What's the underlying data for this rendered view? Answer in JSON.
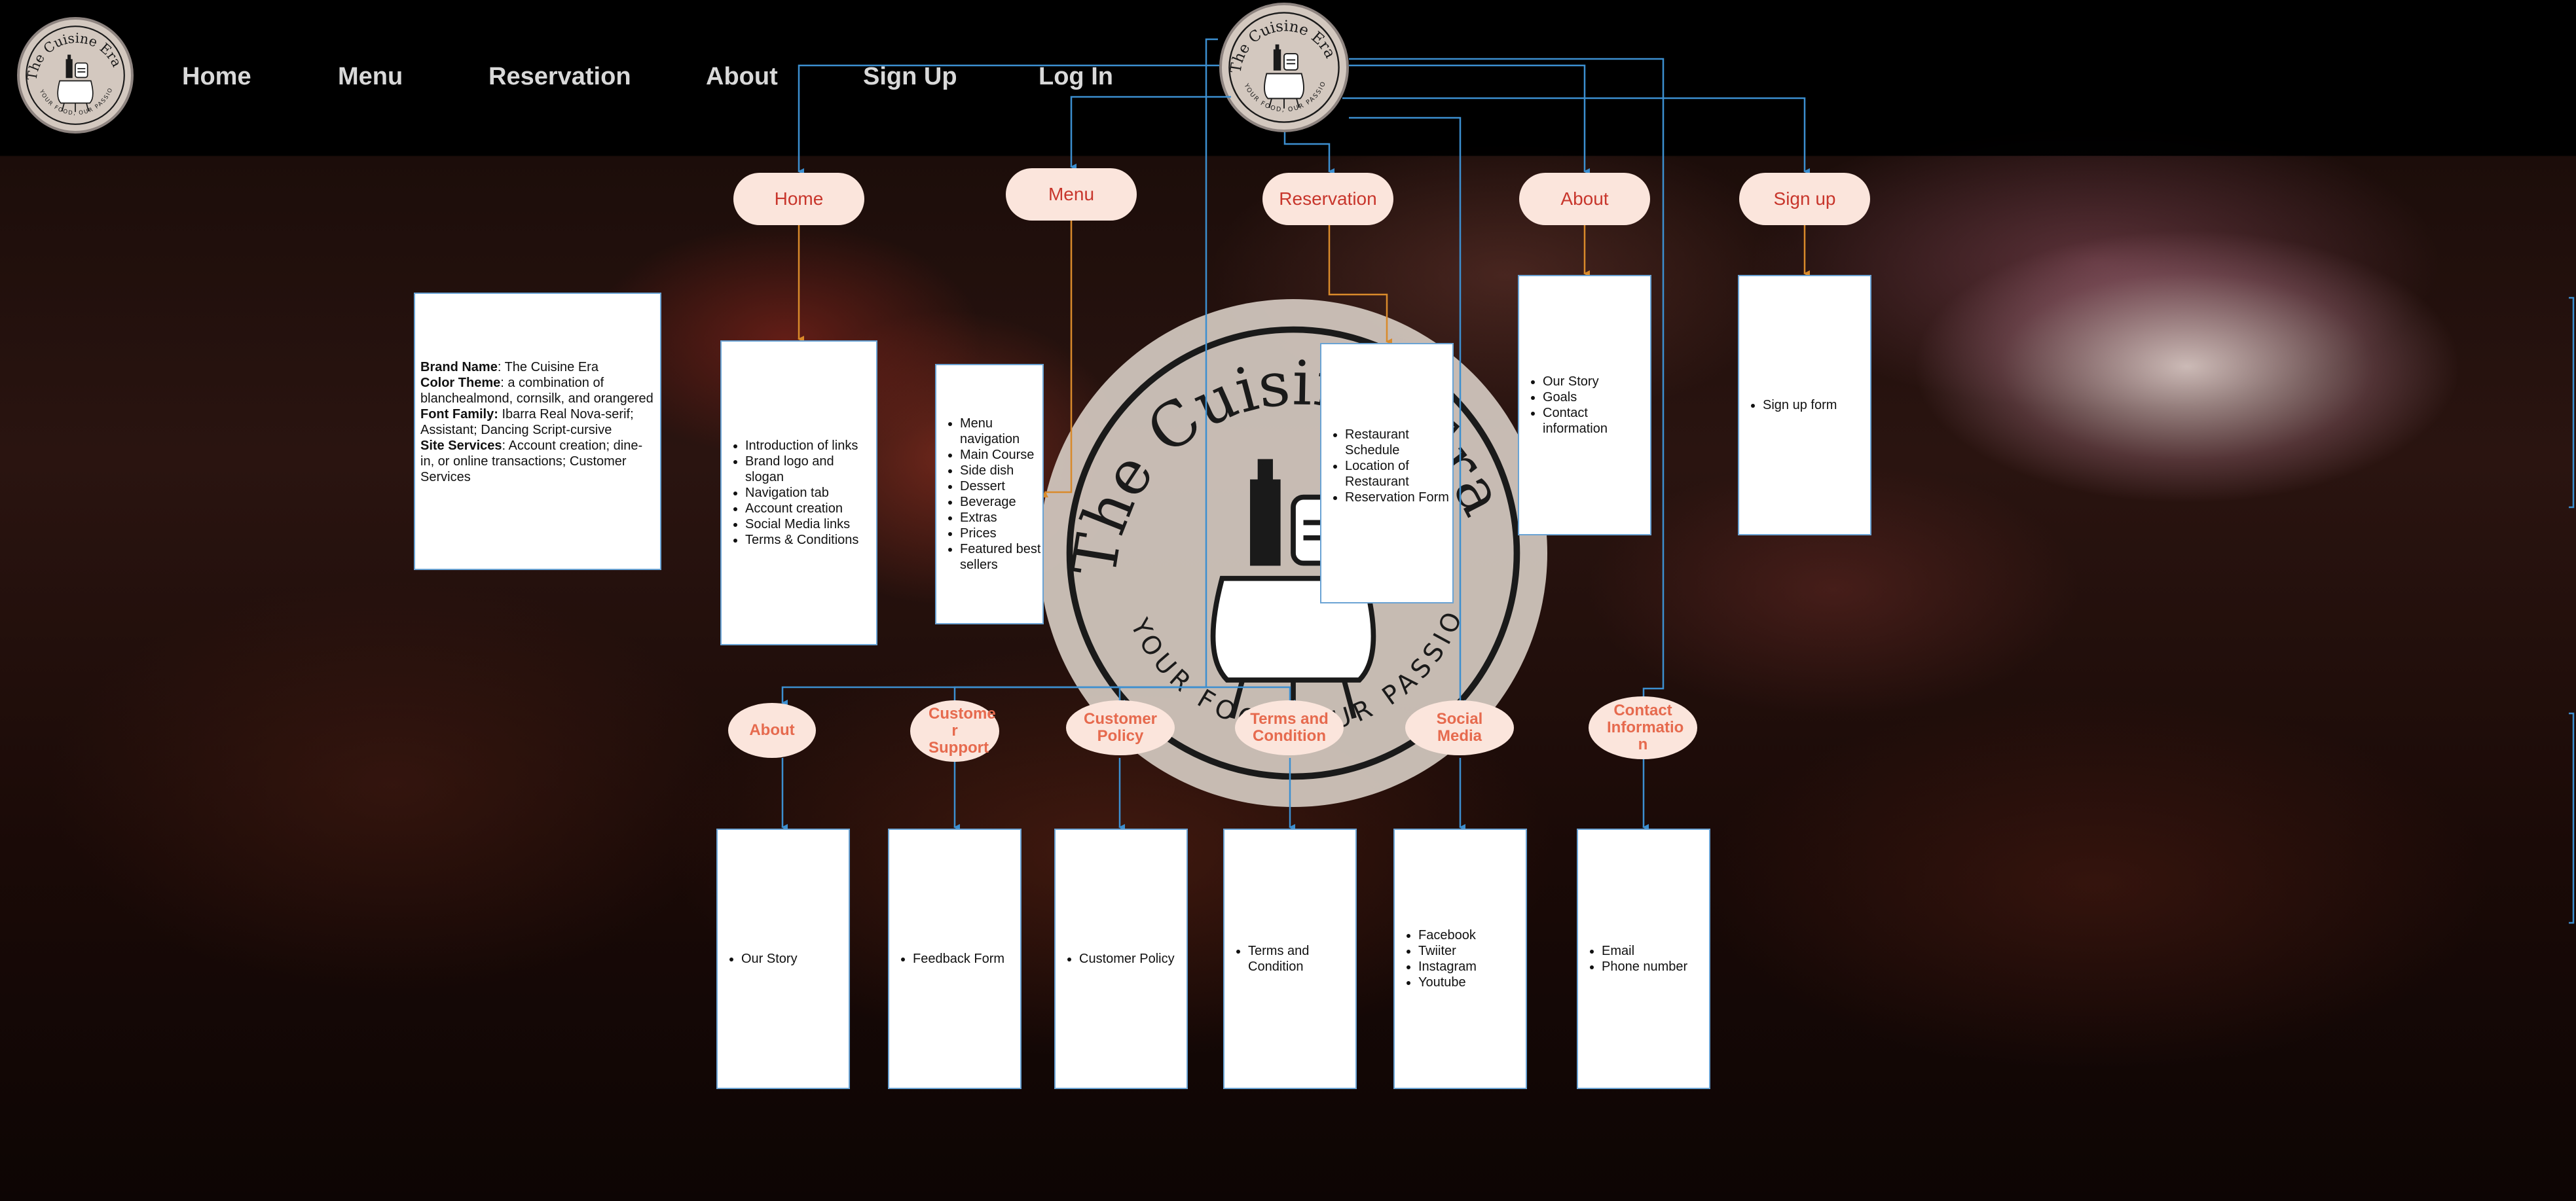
{
  "brand": {
    "name": "The Cuisine Era",
    "tagline": "YOUR FOOD, OUR PASSION",
    "logo_icon": "table-with-wine-and-dish-icon"
  },
  "colors": {
    "pill_fill": "#fbe5dc",
    "pill_text_top": "#c8362c",
    "pill_text_bottom": "#e66a4e",
    "connector_blue": "#3c8fd0",
    "connector_orange": "#d98a2b",
    "card_border": "#6aa3d4",
    "logo_fill": "#d3c8bf"
  },
  "nav": {
    "items": [
      "Home",
      "Menu",
      "Reservation",
      "About",
      "Sign Up",
      "Log In"
    ]
  },
  "info": {
    "brand_label": "Brand Name",
    "brand_value": ": The Cuisine Era",
    "color_label": "Color Theme",
    "color_value": ": a combination of blanchealmond, cornsilk, and orangered",
    "font_label": "Font Family:",
    "font_value": " Ibarra Real Nova-serif; Assistant; Dancing Script-cursive",
    "services_label": "Site Services",
    "services_value": ": Account creation; dine-in, or online transactions; Customer Services"
  },
  "top_nodes": [
    {
      "label": "Home",
      "items": [
        "Introduction of links",
        "Brand logo and slogan",
        "Navigation tab",
        "Account creation",
        "Social Media links",
        "Terms & Conditions"
      ]
    },
    {
      "label": "Menu",
      "items": [
        "Menu navigation",
        "Main Course",
        "Side dish",
        "Dessert",
        "Beverage",
        "Extras",
        "Prices",
        "Featured best sellers"
      ]
    },
    {
      "label": "Reservation",
      "items": [
        "Restaurant Schedule",
        "Location of Restaurant",
        "Reservation Form"
      ]
    },
    {
      "label": "About",
      "items": [
        "Our Story",
        "Goals",
        "Contact information"
      ]
    },
    {
      "label": "Sign up",
      "items": [
        "Sign up form"
      ]
    }
  ],
  "bottom_nodes": [
    {
      "label": "About",
      "items": [
        "Our Story"
      ]
    },
    {
      "label": "Custome r Support",
      "items": [
        "Feedback Form"
      ]
    },
    {
      "label": "Customer Policy",
      "items": [
        "Customer Policy"
      ]
    },
    {
      "label": "Terms and Condition",
      "items": [
        "Terms and Condition"
      ]
    },
    {
      "label": "Social Media",
      "items": [
        "Facebook",
        "Twiiter",
        "Instagram",
        "Youtube"
      ]
    },
    {
      "label": "Contact Informatio n",
      "items": [
        "Email",
        "Phone number"
      ]
    }
  ]
}
